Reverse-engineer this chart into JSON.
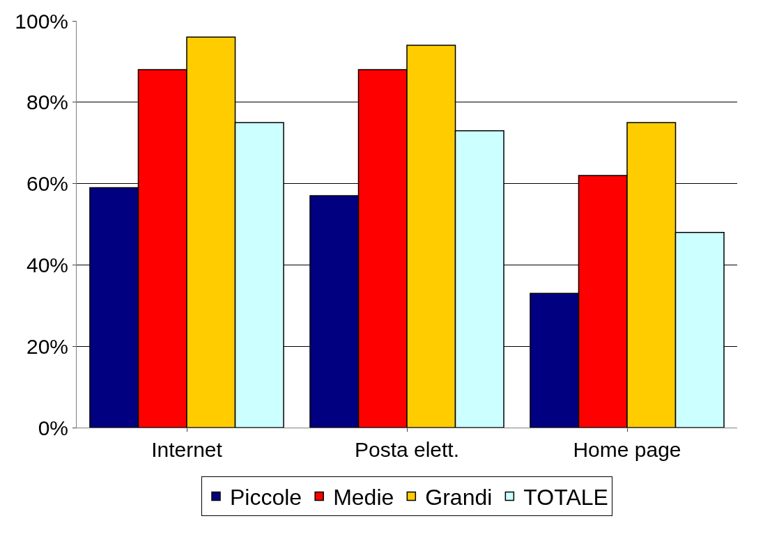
{
  "chart_data": {
    "type": "bar",
    "categories": [
      "Internet",
      "Posta elett.",
      "Home page"
    ],
    "series": [
      {
        "name": "Piccole",
        "color": "#000080",
        "values": [
          59,
          57,
          33
        ]
      },
      {
        "name": "Medie",
        "color": "#ff0000",
        "values": [
          88,
          88,
          62
        ]
      },
      {
        "name": "Grandi",
        "color": "#ffcc00",
        "values": [
          96,
          94,
          75
        ]
      },
      {
        "name": "TOTALE",
        "color": "#ccffff",
        "values": [
          75,
          73,
          48
        ]
      }
    ],
    "ylim": [
      0,
      100
    ],
    "yticks": [
      {
        "value": 0,
        "label": "0%"
      },
      {
        "value": 20,
        "label": "20%"
      },
      {
        "value": 40,
        "label": "40%"
      },
      {
        "value": 60,
        "label": "60%"
      },
      {
        "value": 80,
        "label": "80%"
      },
      {
        "value": 100,
        "label": "100%"
      }
    ],
    "grid": "y",
    "legend": "bottom"
  }
}
